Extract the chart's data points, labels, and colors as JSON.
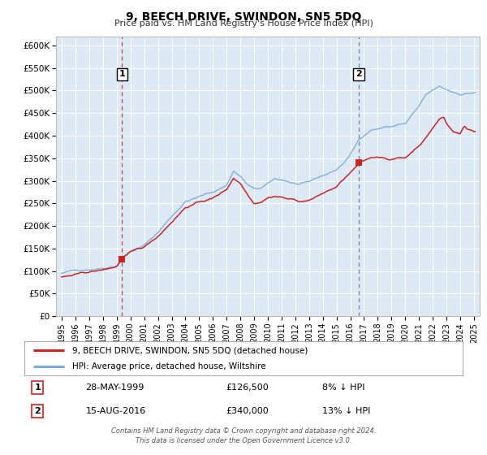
{
  "title": "9, BEECH DRIVE, SWINDON, SN5 5DQ",
  "subtitle": "Price paid vs. HM Land Registry's House Price Index (HPI)",
  "bg_color": "#ffffff",
  "plot_bg_color": "#dce9f5",
  "grid_color": "#c8d8e8",
  "hpi_color": "#7aaddc",
  "price_color": "#cc2222",
  "ylim": [
    0,
    620000
  ],
  "yticks": [
    0,
    50000,
    100000,
    150000,
    200000,
    250000,
    300000,
    350000,
    400000,
    450000,
    500000,
    550000,
    600000
  ],
  "ytick_labels": [
    "£0",
    "£50K",
    "£100K",
    "£150K",
    "£200K",
    "£250K",
    "£300K",
    "£350K",
    "£400K",
    "£450K",
    "£500K",
    "£550K",
    "£600K"
  ],
  "xlim_start": 1994.58,
  "xlim_end": 2025.42,
  "xticks": [
    1995,
    1996,
    1997,
    1998,
    1999,
    2000,
    2001,
    2002,
    2003,
    2004,
    2005,
    2006,
    2007,
    2008,
    2009,
    2010,
    2011,
    2012,
    2013,
    2014,
    2015,
    2016,
    2017,
    2018,
    2019,
    2020,
    2021,
    2022,
    2023,
    2024,
    2025
  ],
  "sale1_x": 1999.38,
  "sale1_y": 126500,
  "sale1_label": "1",
  "sale1_date": "28-MAY-1999",
  "sale1_price": "£126,500",
  "sale1_hpi": "8% ↓ HPI",
  "sale2_x": 2016.62,
  "sale2_y": 340000,
  "sale2_label": "2",
  "sale2_date": "15-AUG-2016",
  "sale2_price": "£340,000",
  "sale2_hpi": "13% ↓ HPI",
  "legend_line1": "9, BEECH DRIVE, SWINDON, SN5 5DQ (detached house)",
  "legend_line2": "HPI: Average price, detached house, Wiltshire",
  "footer": "Contains HM Land Registry data © Crown copyright and database right 2024.\nThis data is licensed under the Open Government Licence v3.0."
}
